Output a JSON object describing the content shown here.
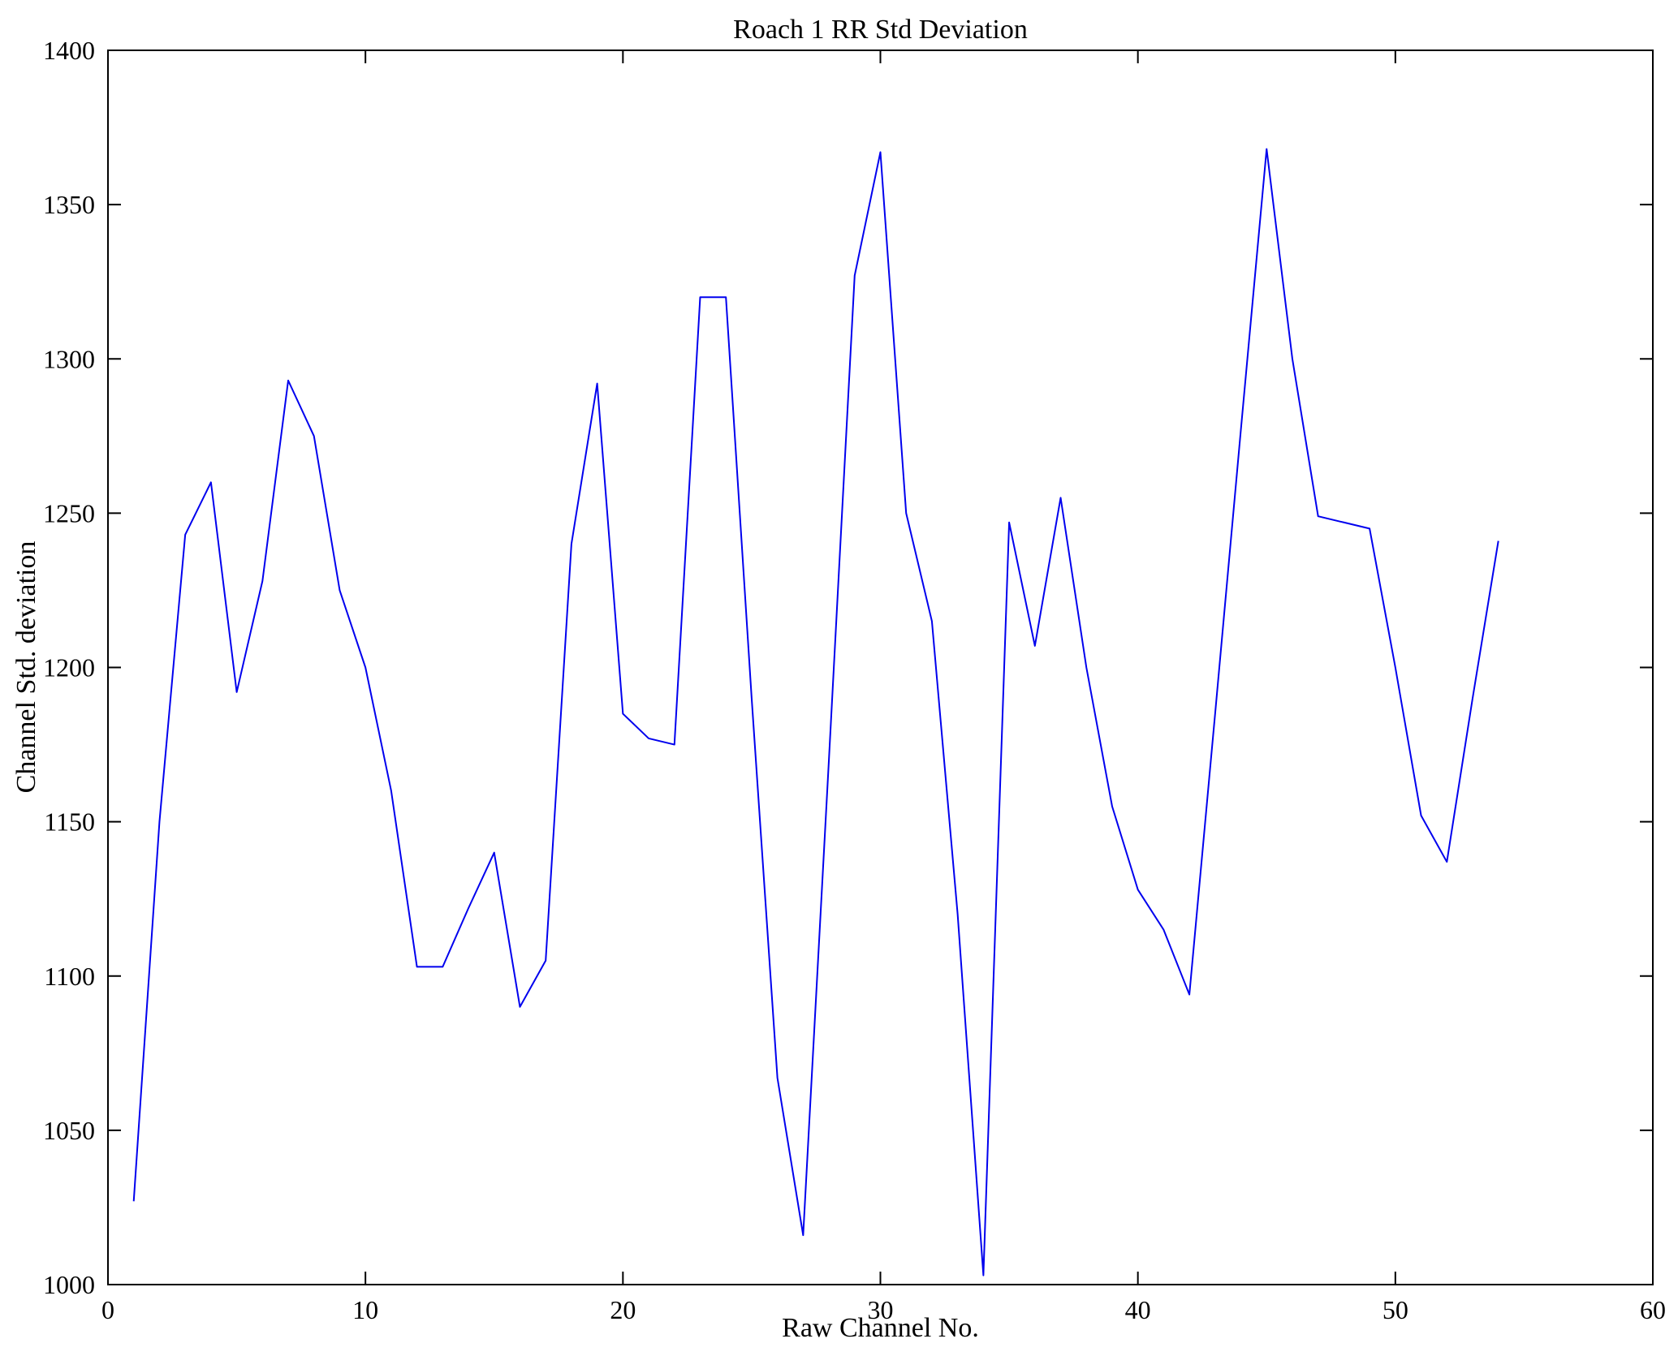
{
  "figure": {
    "title": "Roach 1 RR Std Deviation",
    "xlabel": "Raw Channel No.",
    "ylabel": "Channel Std. deviation"
  },
  "chart_data": {
    "type": "line",
    "title": "Roach 1 RR Std Deviation",
    "xlabel": "Raw Channel No.",
    "ylabel": "Channel Std. deviation",
    "line_color": "#0000ee",
    "axis_color": "#000000",
    "grid": false,
    "legend": "none",
    "xlim": [
      0,
      60
    ],
    "ylim": [
      1000,
      1400
    ],
    "xticks": [
      0,
      10,
      20,
      30,
      40,
      50,
      60
    ],
    "yticks": [
      1000,
      1050,
      1100,
      1150,
      1200,
      1250,
      1300,
      1350,
      1400
    ],
    "x": [
      1,
      2,
      3,
      4,
      5,
      6,
      7,
      8,
      9,
      10,
      11,
      12,
      13,
      14,
      15,
      16,
      17,
      18,
      19,
      20,
      21,
      22,
      23,
      24,
      25,
      26,
      27,
      28,
      29,
      30,
      31,
      32,
      33,
      34,
      35,
      36,
      37,
      38,
      39,
      40,
      41,
      42,
      43,
      44,
      45,
      46,
      47,
      48,
      49,
      50,
      51,
      52,
      53,
      54
    ],
    "values": [
      1027,
      1150,
      1243,
      1260,
      1192,
      1228,
      1293,
      1275,
      1225,
      1200,
      1160,
      1103,
      1103,
      1122,
      1140,
      1090,
      1105,
      1240,
      1292,
      1185,
      1177,
      1175,
      1320,
      1320,
      1190,
      1067,
      1016,
      1170,
      1327,
      1367,
      1250,
      1215,
      1120,
      1003,
      1247,
      1207,
      1255,
      1200,
      1155,
      1128,
      1115,
      1094,
      1185,
      1277,
      1368,
      1300,
      1249,
      1247,
      1245,
      1200,
      1152,
      1137,
      1190,
      1241
    ]
  }
}
